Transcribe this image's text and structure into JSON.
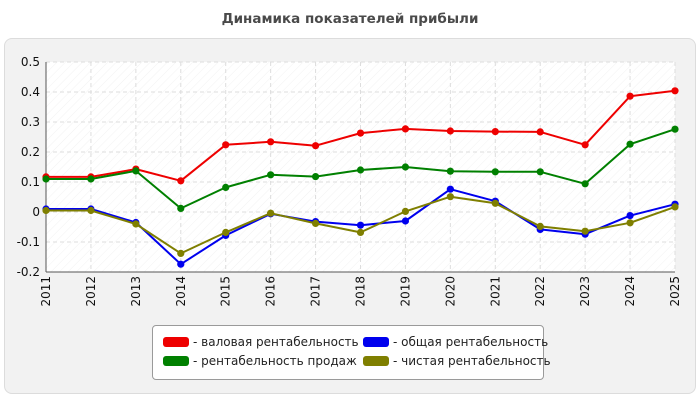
{
  "title": "Динамика показателей прибыли",
  "chart_data": {
    "type": "line",
    "title": "Динамика показателей прибыли",
    "x": [
      "2011",
      "2012",
      "2013",
      "2014",
      "2015",
      "2016",
      "2017",
      "2018",
      "2019",
      "2020",
      "2021",
      "2022",
      "2023",
      "2024",
      "2025"
    ],
    "ylim": [
      -0.2,
      0.5
    ],
    "yticks": [
      "0.5",
      "0.4",
      "0.3",
      "0.2",
      "0.1",
      "0",
      "-0.1",
      "-0.2"
    ],
    "ytick_values": [
      0.5,
      0.4,
      0.3,
      0.2,
      0.1,
      0,
      -0.1,
      -0.2
    ],
    "grid": true,
    "legend_position": "bottom",
    "series": [
      {
        "name": "- валовая рентабельность",
        "color": "#ee0000",
        "values": [
          0.117,
          0.117,
          0.143,
          0.104,
          0.224,
          0.234,
          0.221,
          0.263,
          0.277,
          0.27,
          0.268,
          0.267,
          0.224,
          0.386,
          0.404
        ]
      },
      {
        "name": "- общая рентабельность",
        "color": "#0000ee",
        "values": [
          0.01,
          0.01,
          -0.035,
          -0.174,
          -0.078,
          -0.006,
          -0.032,
          -0.044,
          -0.03,
          0.076,
          0.036,
          -0.058,
          -0.074,
          -0.012,
          0.026
        ]
      },
      {
        "name": "- рентабельность продаж",
        "color": "#008000",
        "values": [
          0.11,
          0.11,
          0.137,
          0.012,
          0.082,
          0.124,
          0.118,
          0.14,
          0.15,
          0.136,
          0.134,
          0.134,
          0.094,
          0.226,
          0.276
        ]
      },
      {
        "name": "- чистая рентабельность",
        "color": "#7f7f00",
        "values": [
          0.005,
          0.005,
          -0.04,
          -0.138,
          -0.068,
          -0.004,
          -0.038,
          -0.068,
          0.002,
          0.051,
          0.029,
          -0.048,
          -0.064,
          -0.036,
          0.017
        ]
      }
    ],
    "colors": {
      "plot_background": "#ffffff",
      "panel_background": "#f2f2f2",
      "grid": "#dddddd"
    }
  }
}
